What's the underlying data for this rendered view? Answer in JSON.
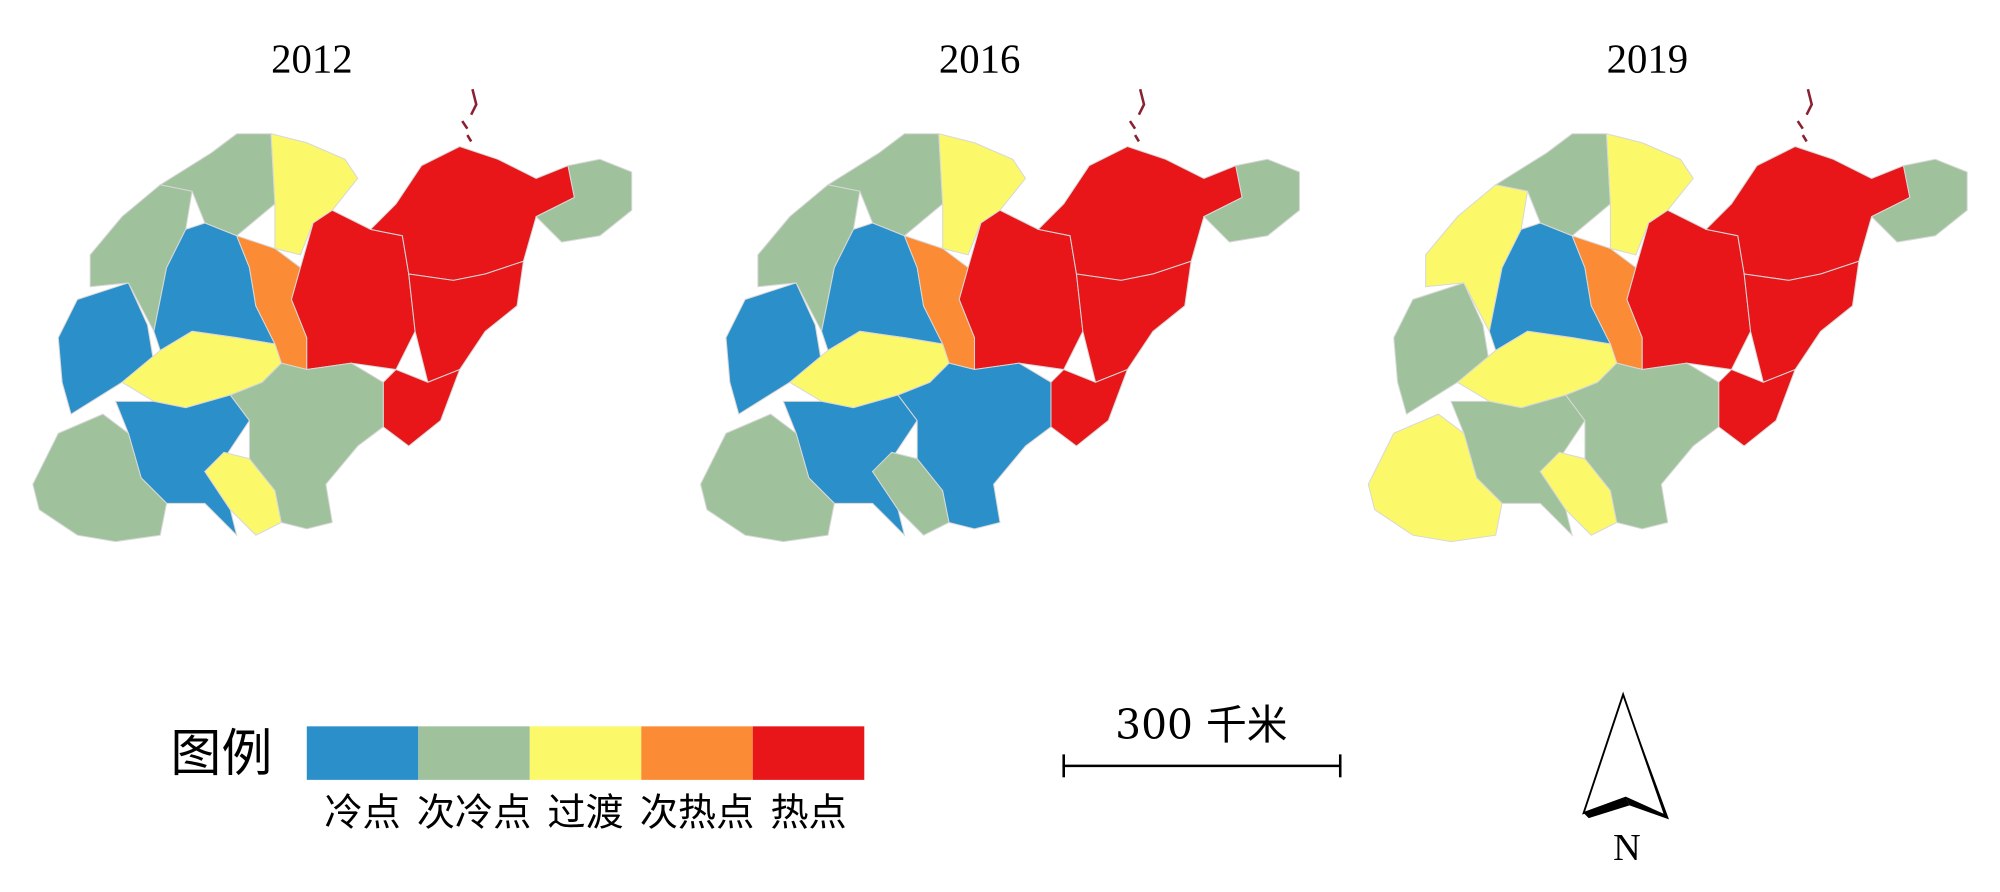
{
  "maps": [
    {
      "title": "2012",
      "regions": [
        0,
        1,
        1,
        2,
        0,
        3,
        4,
        4,
        1,
        4,
        4,
        2,
        0,
        1,
        2,
        1
      ]
    },
    {
      "title": "2016",
      "regions": [
        0,
        1,
        1,
        2,
        0,
        3,
        4,
        4,
        1,
        4,
        4,
        2,
        0,
        1,
        1,
        0
      ]
    },
    {
      "title": "2019",
      "regions": [
        1,
        2,
        1,
        2,
        0,
        3,
        4,
        4,
        1,
        4,
        4,
        2,
        1,
        2,
        2,
        1
      ]
    }
  ],
  "legend": {
    "title": "图例",
    "items": [
      {
        "label": "冷点",
        "color": "#2b8fc9"
      },
      {
        "label": "次冷点",
        "color": "#9fc29c"
      },
      {
        "label": "过渡",
        "color": "#fbf86a"
      },
      {
        "label": "次热点",
        "color": "#fb8c35"
      },
      {
        "label": "热点",
        "color": "#e81519"
      }
    ]
  },
  "scale_bar": {
    "label": "300 千米"
  },
  "north_arrow": {
    "label": "N"
  }
}
